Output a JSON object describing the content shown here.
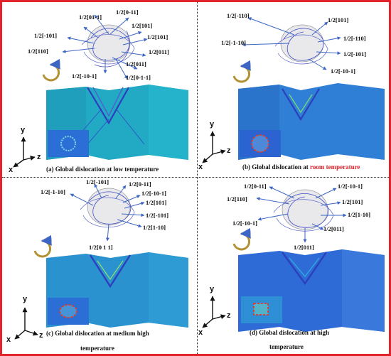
{
  "panels": {
    "a": {
      "caption": "(a) Global dislocation at low temperature",
      "labels": [
        "1/2[0-11]",
        "1/2[01-1]",
        "1/2[101]",
        "1/2[-101]",
        "1/2[101]",
        "1/2[110]",
        "1/2[011]",
        "1/2[011]",
        "1/2[-10-1]",
        "1/2[0-1-1]"
      ]
    },
    "b": {
      "caption_prefix": "(b) Global dislocation at",
      "caption_highlight": "room temperature",
      "labels": [
        "1/2[-110]",
        "1/2[101]",
        "1/2[-1-10]",
        "1/2[-110]",
        "1/2[-101]",
        "1/2[-10-1]"
      ]
    },
    "c": {
      "caption_line1": "(c) Global dislocation at medium high",
      "caption_line2": "temperature",
      "labels": [
        "1/2[-101]",
        "1/2[0-11]",
        "1/2[-1-10]",
        "1/2[-10-1]",
        "1/2[101]",
        "1/2[-101]",
        "1/2[1-10]",
        "1/2[0 1 1]"
      ]
    },
    "d": {
      "caption_line1": "(d) Global dislocation at high",
      "caption_line2": "temperature",
      "labels": [
        "1/2[0-11]",
        "1/2[-10-1]",
        "1/2[110]",
        "1/2[101]",
        "1/2[-10-1]",
        "1/2[1-10]",
        "1/2[011]",
        "1/2[011]"
      ]
    }
  },
  "axes": {
    "y": "y",
    "x": "x",
    "z": "z"
  },
  "colors": {
    "border": "#e2232a",
    "slab_low": "#1fb3c9",
    "slab_high": "#2b6fd6",
    "dislocation": "#2c3fc2",
    "ring": "#e23a2a"
  }
}
